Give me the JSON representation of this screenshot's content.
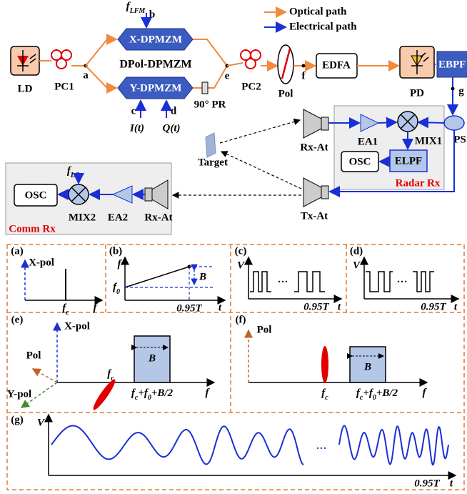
{
  "legend": {
    "optical": "Optical path",
    "electrical": "Electrical path"
  },
  "transmitter": {
    "ld": "LD",
    "pc1": "PC1",
    "a": "a",
    "f_lfm": [
      "f",
      "LFM"
    ],
    "b": "b",
    "x_dpmzm": "X-DPMZM",
    "y_dpmzm": "Y-DPMZM",
    "dpol": "DPol-DPMZM",
    "c": "c",
    "d": "d",
    "i": "I(t)",
    "q": "Q(t)",
    "pr": "90° PR",
    "e": "e",
    "pc2": "PC2",
    "pol": "Pol",
    "f": "f",
    "edfa": "EDFA",
    "pd": "PD",
    "ebpf": "EBPF",
    "g": "g",
    "ps": "PS"
  },
  "radar_rx": {
    "rx_at": "Rx-At",
    "ea1": "EA1",
    "mix1": "MIX1",
    "osc": "OSC",
    "elpf": "ELPF",
    "title": "Radar Rx"
  },
  "target": "Target",
  "tx_at": "Tx-At",
  "comm_rx": {
    "f_lo": [
      "f",
      "LO"
    ],
    "osc": "OSC",
    "mix2": "MIX2",
    "ea2": "EA2",
    "rx_at": "Rx-At",
    "title": "Comm Rx"
  },
  "panels": {
    "a": {
      "label": "(a)",
      "x_pol": "X-pol",
      "fc": [
        "f",
        "c"
      ],
      "f": "f"
    },
    "b": {
      "label": "(b)",
      "f": "f",
      "B": "B",
      "f0": [
        "f",
        "0"
      ],
      "t95": "0.95T",
      "t": "t"
    },
    "c": {
      "label": "(c)",
      "V": "V",
      "dots": "···",
      "t95": "0.95T",
      "t": "t"
    },
    "d": {
      "label": "(d)",
      "V": "V",
      "dots": "···",
      "t95": "0.95T",
      "t": "t"
    },
    "e": {
      "label": "(e)",
      "x_pol": "X-pol",
      "pol": "Pol",
      "y_pol": "Y-pol",
      "fc": [
        "f",
        "c"
      ],
      "B": "B",
      "sum": [
        "f",
        "c",
        "+f",
        "0",
        "+B/2"
      ],
      "f": "f"
    },
    "f": {
      "label": "(f)",
      "pol": "Pol",
      "B": "B",
      "fc": [
        "f",
        "c"
      ],
      "sum": [
        "f",
        "c",
        "+f",
        "0",
        "+B/2"
      ],
      "f": "f"
    },
    "g": {
      "label": "(g)",
      "V": "V",
      "dots": "···",
      "t95": "0.95T",
      "t": "t"
    }
  }
}
